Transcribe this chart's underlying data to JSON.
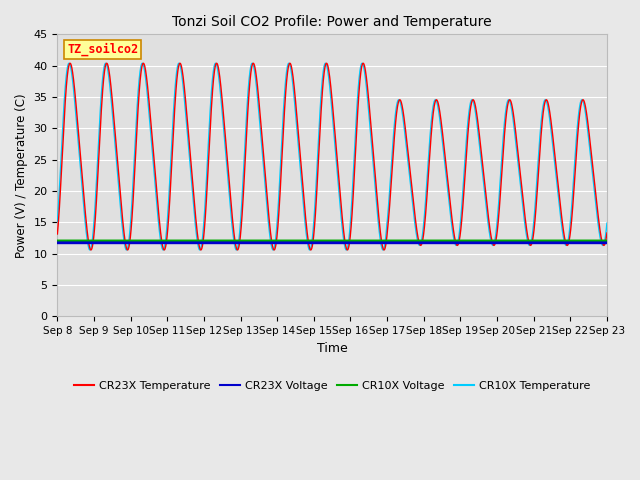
{
  "title": "Tonzi Soil CO2 Profile: Power and Temperature",
  "xlabel": "Time",
  "ylabel": "Power (V) / Temperature (C)",
  "ylim": [
    0,
    45
  ],
  "yticks": [
    0,
    5,
    10,
    15,
    20,
    25,
    30,
    35,
    40,
    45
  ],
  "x_tick_labels": [
    "Sep 8",
    "Sep 9",
    "Sep 10",
    "Sep 11",
    "Sep 12",
    "Sep 13",
    "Sep 14",
    "Sep 15",
    "Sep 16",
    "Sep 17",
    "Sep 18",
    "Sep 19",
    "Sep 20",
    "Sep 21",
    "Sep 22",
    "Sep 23"
  ],
  "cr23x_voltage_value": 11.75,
  "cr10x_voltage_value": 12.05,
  "cr23x_color": "#ff0000",
  "cr23x_voltage_color": "#0000cc",
  "cr10x_voltage_color": "#00aa00",
  "cr10x_color": "#00ccff",
  "fig_facecolor": "#e8e8e8",
  "plot_facecolor": "#e0e0e0",
  "legend_box_facecolor": "#ffff99",
  "legend_box_edgecolor": "#cc8800",
  "annotation_text": "TZ_soilco2",
  "figsize": [
    6.4,
    4.8
  ],
  "dpi": 100
}
